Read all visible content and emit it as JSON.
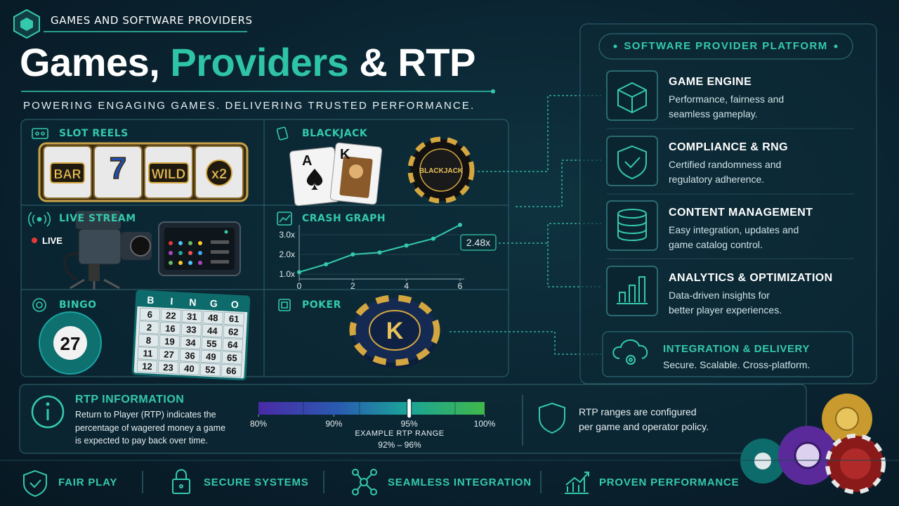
{
  "header": {
    "badge": "GAMES AND SOFTWARE PROVIDERS",
    "title": {
      "part1": "Games,",
      "part2": "Providers",
      "part3": "& RTP"
    },
    "tagline": "POWERING ENGAGING GAMES. DELIVERING TRUSTED PERFORMANCE."
  },
  "games": {
    "slot_reels": {
      "label": "SLOT REELS",
      "symbols": [
        "BAR",
        "7",
        "WILD",
        "x2"
      ]
    },
    "blackjack": {
      "label": "BLACKJACK",
      "cards": [
        "A",
        "K"
      ],
      "chip": "BLACKJACK"
    },
    "live_stream": {
      "label": "LIVE STREAM",
      "badge": "LIVE"
    },
    "crash_graph": {
      "label": "CRASH GRAPH",
      "chart_data": {
        "type": "line",
        "x": [
          0,
          1,
          2,
          3,
          4,
          5,
          6
        ],
        "values": [
          1.1,
          1.5,
          2.0,
          2.1,
          2.45,
          2.8,
          3.5
        ],
        "color": "#34c9ad",
        "xlim": [
          0,
          6
        ],
        "ylim": [
          0.75,
          3.5
        ],
        "xticks": [
          0,
          2,
          4,
          6
        ],
        "yticks": [
          {
            "value": 1,
            "label": "1.0x"
          },
          {
            "value": 2,
            "label": "2.0x"
          },
          {
            "value": 3,
            "label": "3.0x"
          }
        ],
        "annotation": "2.48x"
      }
    },
    "bingo": {
      "label": "BINGO",
      "ball": 27,
      "letters": [
        "B",
        "I",
        "N",
        "G",
        "O"
      ],
      "card": [
        [
          6,
          22,
          31,
          48,
          61
        ],
        [
          2,
          16,
          33,
          44,
          62
        ],
        [
          8,
          19,
          34,
          55,
          64
        ],
        [
          11,
          27,
          36,
          49,
          65
        ],
        [
          12,
          23,
          40,
          52,
          66
        ]
      ]
    },
    "poker": {
      "label": "POKER",
      "chip": "K"
    }
  },
  "platform": {
    "title": "SOFTWARE PROVIDER PLATFORM",
    "items": [
      {
        "title": "GAME ENGINE",
        "description": [
          "Performance, fairness and",
          "seamless gameplay."
        ]
      },
      {
        "title": "COMPLIANCE & RNG",
        "description": [
          "Certified randomness and",
          "regulatory adherence."
        ]
      },
      {
        "title": "CONTENT MANAGEMENT",
        "description": [
          "Easy integration, updates and",
          "game catalog control."
        ]
      },
      {
        "title": "ANALYTICS & OPTIMIZATION",
        "description": [
          "Data-driven insights for",
          "better player experiences."
        ]
      }
    ],
    "integration": {
      "title": "INTEGRATION & DELIVERY",
      "description": "Secure. Scalable. Cross-platform."
    }
  },
  "rtp": {
    "title": "RTP INFORMATION",
    "description": [
      "Return to Player (RTP) indicates the",
      "percentage of wagered money a game",
      "is expected to pay back over time."
    ],
    "scale": {
      "ticks": [
        {
          "value": 80,
          "label": "80%"
        },
        {
          "value": 90,
          "label": "90%"
        },
        {
          "value": 95,
          "label": "95%"
        },
        {
          "value": 100,
          "label": "100%"
        }
      ],
      "marker": 95,
      "caption": "EXAMPLE RTP RANGE",
      "range": "92% – 96%"
    },
    "note": [
      "RTP ranges are configured",
      "per game and operator policy."
    ]
  },
  "footer": [
    "FAIR PLAY",
    "SECURE SYSTEMS",
    "SEAMLESS INTEGRATION",
    "PROVEN PERFORMANCE"
  ]
}
